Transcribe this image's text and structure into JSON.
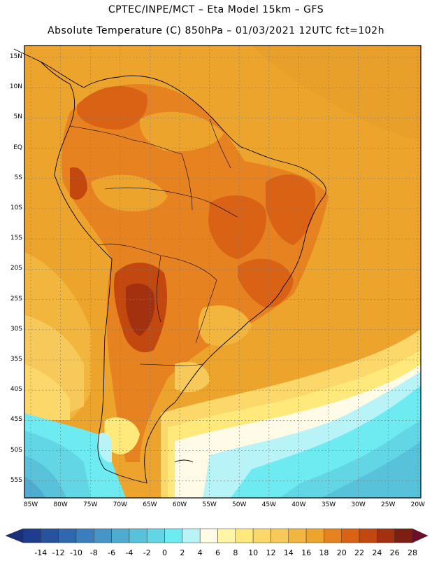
{
  "header": {
    "line1": "CPTEC/INPE/MCT –  Eta Model 15km – GFS",
    "line2": "Absolute Temperature (C) 850hPa – 01/03/2021 12UTC fct=102h"
  },
  "map": {
    "lat_labels": [
      "15N",
      "10N",
      "5N",
      "EQ",
      "5S",
      "10S",
      "15S",
      "20S",
      "25S",
      "30S",
      "35S",
      "40S",
      "45S",
      "50S",
      "55S"
    ],
    "lon_labels": [
      "85W",
      "80W",
      "75W",
      "70W",
      "65W",
      "60W",
      "55W",
      "50W",
      "45W",
      "40W",
      "35W",
      "30W",
      "25W",
      "20W"
    ]
  },
  "colorbar": {
    "labels": [
      "-14",
      "-12",
      "-10",
      "-8",
      "-6",
      "-4",
      "-2",
      "0",
      "2",
      "4",
      "6",
      "8",
      "10",
      "12",
      "14",
      "16",
      "18",
      "20",
      "22",
      "24",
      "26",
      "28"
    ],
    "colors": [
      "#1f3d8f",
      "#27529e",
      "#2f68ae",
      "#3a7fbd",
      "#4595c6",
      "#4dacd0",
      "#57c2da",
      "#62d6e5",
      "#6eeaf1",
      "#b8f4f7",
      "#fffbe6",
      "#fff5a5",
      "#ffe97a",
      "#fcd86a",
      "#f7c95b",
      "#f2b63f",
      "#eca42c",
      "#e78220",
      "#d96214",
      "#c2480f",
      "#a3310f",
      "#7d1e12"
    ]
  }
}
